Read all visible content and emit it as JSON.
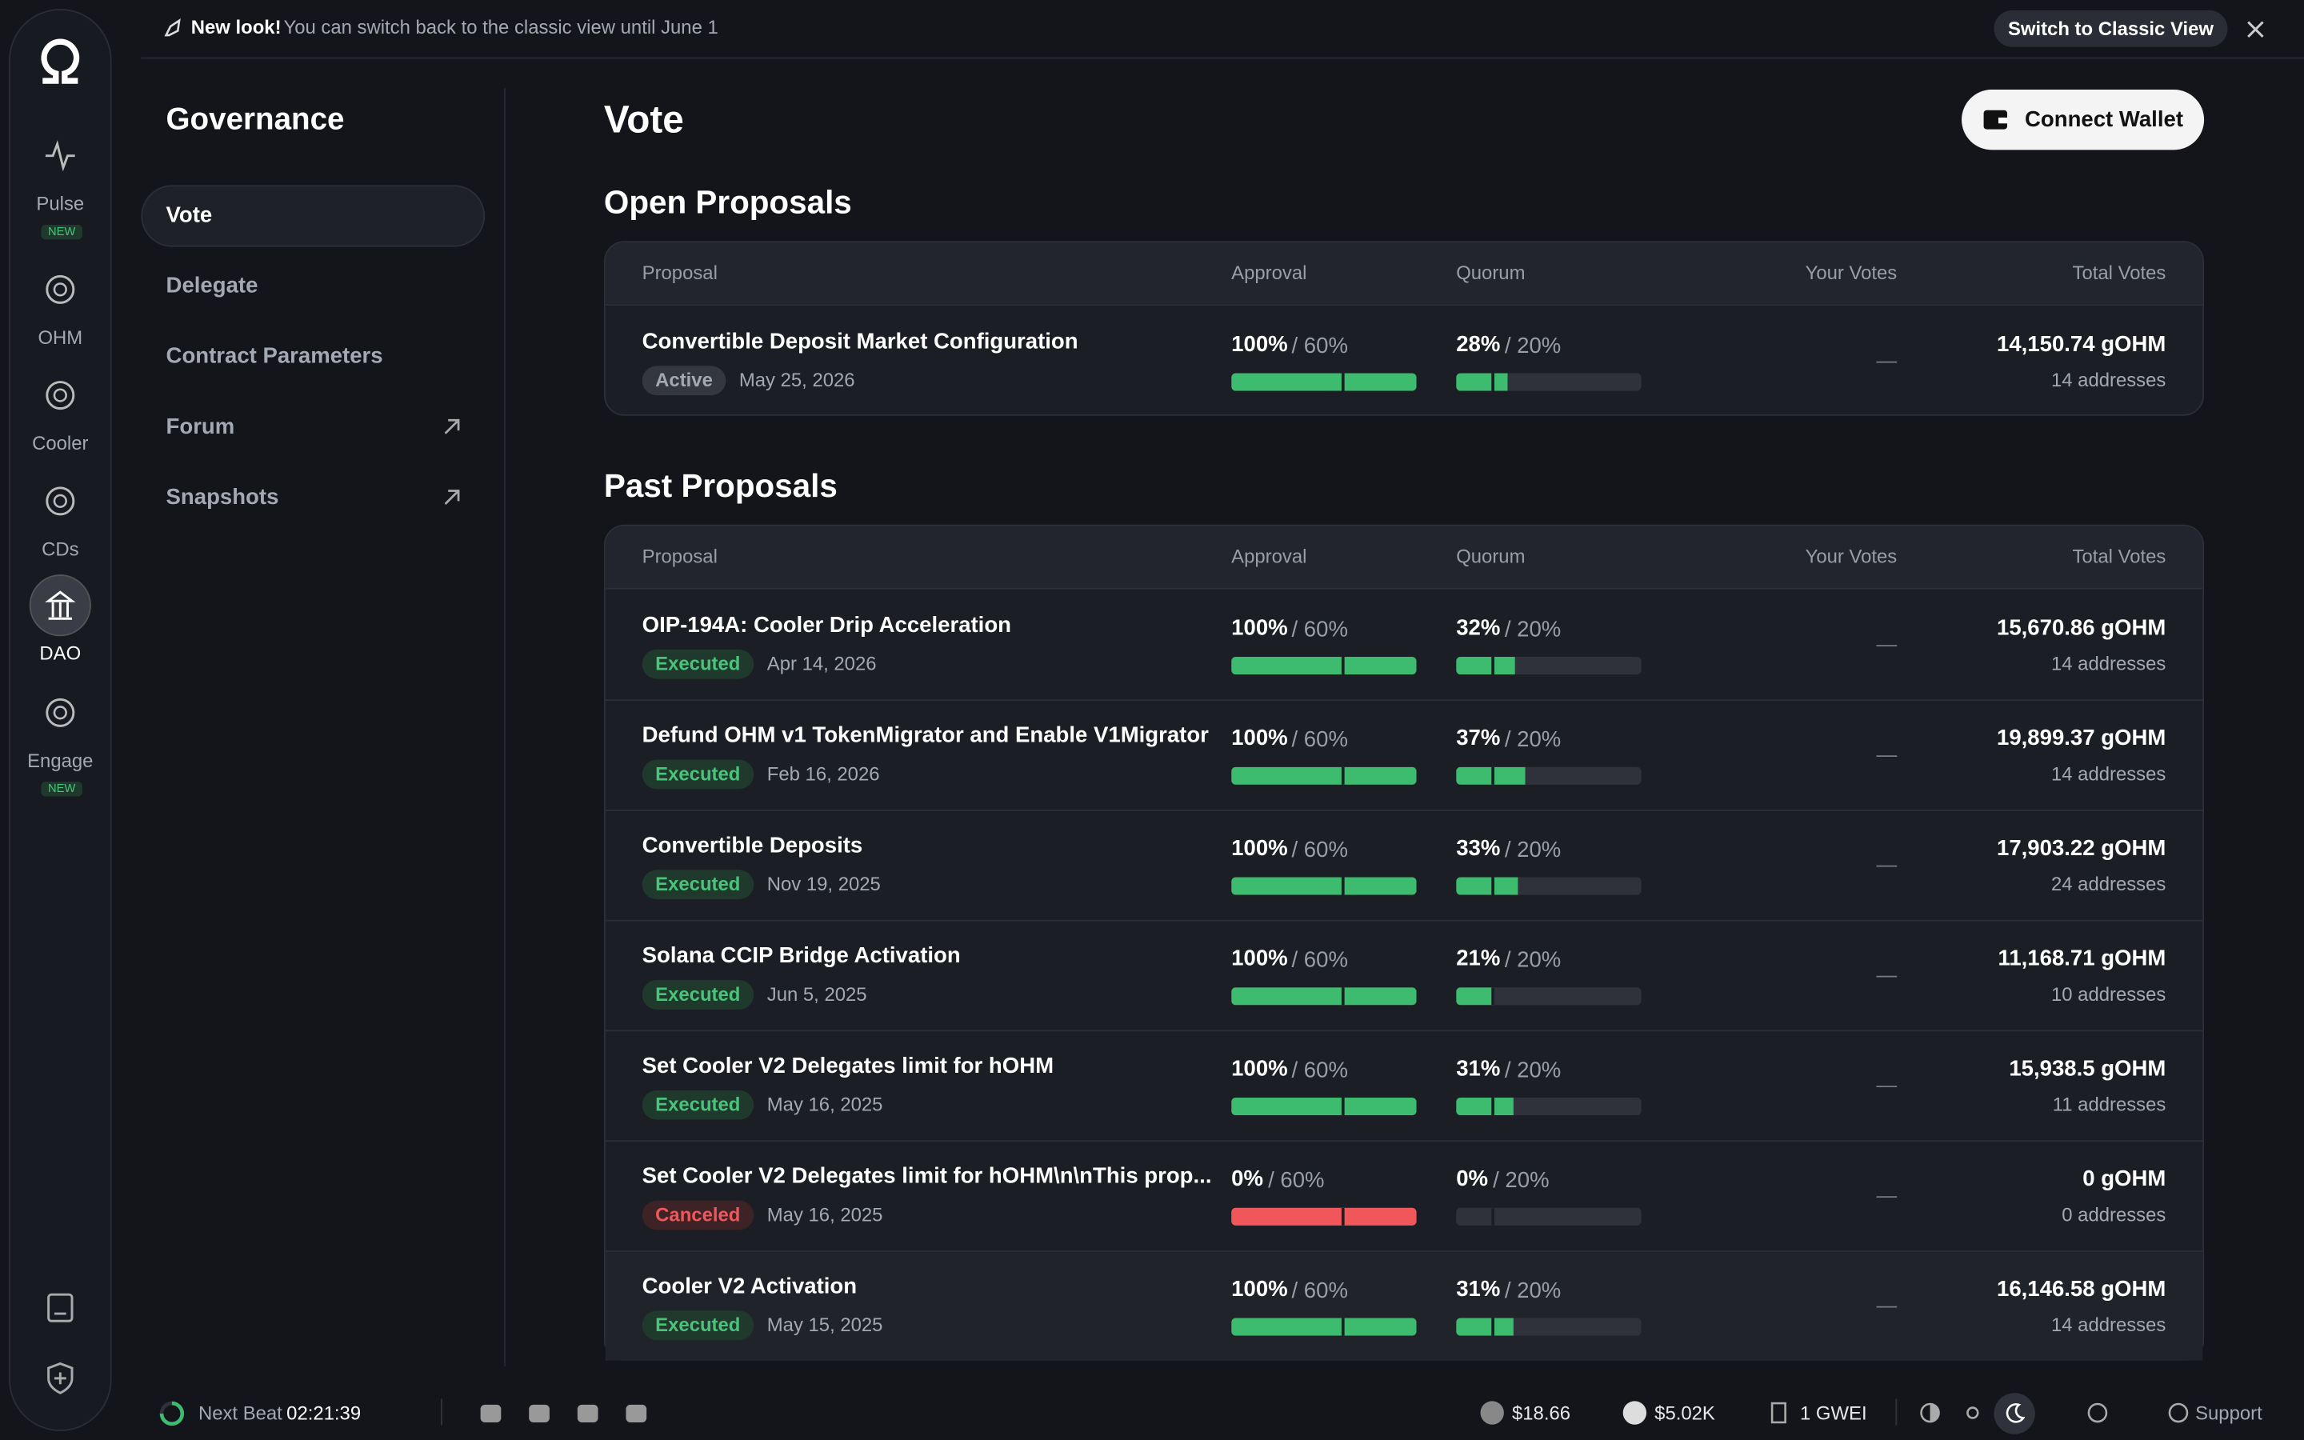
{
  "banner": {
    "highlight": "New look!",
    "message": "You can switch back to the classic view until June 1",
    "button": "Switch to Classic View"
  },
  "nav": [
    {
      "label": "Pulse",
      "badge": "NEW"
    },
    {
      "label": "OHM"
    },
    {
      "label": "Cooler"
    },
    {
      "label": "CDs"
    },
    {
      "label": "DAO"
    },
    {
      "label": "Engage",
      "badge": "NEW"
    }
  ],
  "submenu": {
    "title": "Governance",
    "items": [
      "Vote",
      "Delegate",
      "Contract Parameters",
      "Forum",
      "Snapshots"
    ]
  },
  "page": {
    "title": "Vote",
    "connect_button": "Connect Wallet"
  },
  "open_proposals": {
    "title": "Open Proposals",
    "columns": [
      "Proposal",
      "Approval",
      "Quorum",
      "Your Votes",
      "Total Votes"
    ],
    "rows": [
      {
        "name": "Convertible Deposit Market Configuration",
        "status": "Active",
        "date": "May 25, 2026",
        "approval": {
          "value": 100,
          "label": "100%"
        },
        "approval_threshold": {
          "value": 60,
          "label": "/ 60%"
        },
        "quorum": {
          "value": 28,
          "label": "28%"
        },
        "quorum_threshold": {
          "value": 20,
          "label": "/ 20%"
        },
        "your_votes": "—",
        "total_votes": "14,150.74 gOHM",
        "addresses": "14 addresses"
      }
    ]
  },
  "past_proposals": {
    "title": "Past Proposals",
    "columns": [
      "Proposal",
      "Approval",
      "Quorum",
      "Your Votes",
      "Total Votes"
    ],
    "rows": [
      {
        "name": "OIP-194A: Cooler Drip Acceleration",
        "status": "Executed",
        "date": "Apr 14, 2026",
        "approval": {
          "value": 100,
          "label": "100%"
        },
        "approval_threshold": {
          "value": 60,
          "label": "/ 60%"
        },
        "quorum": {
          "value": 32,
          "label": "32%"
        },
        "quorum_threshold": {
          "value": 20,
          "label": "/ 20%"
        },
        "your_votes": "—",
        "total_votes": "15,670.86 gOHM",
        "addresses": "14 addresses"
      },
      {
        "name": "Defund OHM v1 TokenMigrator and Enable V1Migrator",
        "status": "Executed",
        "date": "Feb 16, 2026",
        "approval": {
          "value": 100,
          "label": "100%"
        },
        "approval_threshold": {
          "value": 60,
          "label": "/ 60%"
        },
        "quorum": {
          "value": 37,
          "label": "37%"
        },
        "quorum_threshold": {
          "value": 20,
          "label": "/ 20%"
        },
        "your_votes": "—",
        "total_votes": "19,899.37 gOHM",
        "addresses": "14 addresses"
      },
      {
        "name": "Convertible Deposits",
        "status": "Executed",
        "date": "Nov 19, 2025",
        "approval": {
          "value": 100,
          "label": "100%"
        },
        "approval_threshold": {
          "value": 60,
          "label": "/ 60%"
        },
        "quorum": {
          "value": 33,
          "label": "33%"
        },
        "quorum_threshold": {
          "value": 20,
          "label": "/ 20%"
        },
        "your_votes": "—",
        "total_votes": "17,903.22 gOHM",
        "addresses": "24 addresses"
      },
      {
        "name": "Solana CCIP Bridge Activation",
        "status": "Executed",
        "date": "Jun 5, 2025",
        "approval": {
          "value": 100,
          "label": "100%"
        },
        "approval_threshold": {
          "value": 60,
          "label": "/ 60%"
        },
        "quorum": {
          "value": 21,
          "label": "21%"
        },
        "quorum_threshold": {
          "value": 20,
          "label": "/ 20%"
        },
        "your_votes": "—",
        "total_votes": "11,168.71 gOHM",
        "addresses": "10 addresses"
      },
      {
        "name": "Set Cooler V2 Delegates limit for hOHM",
        "status": "Executed",
        "date": "May 16, 2025",
        "approval": {
          "value": 100,
          "label": "100%"
        },
        "approval_threshold": {
          "value": 60,
          "label": "/ 60%"
        },
        "quorum": {
          "value": 31,
          "label": "31%"
        },
        "quorum_threshold": {
          "value": 20,
          "label": "/ 20%"
        },
        "your_votes": "—",
        "total_votes": "15,938.5 gOHM",
        "addresses": "11 addresses"
      },
      {
        "name": "Set Cooler V2 Delegates limit for hOHM\\n\\nThis prop...",
        "status": "Canceled",
        "date": "May 16, 2025",
        "approval": {
          "value": 0,
          "label": "0%"
        },
        "approval_threshold": {
          "value": 60,
          "label": "/ 60%"
        },
        "quorum": {
          "value": 0,
          "label": "0%"
        },
        "quorum_threshold": {
          "value": 20,
          "label": "/ 20%"
        },
        "your_votes": "—",
        "total_votes": "0 gOHM",
        "addresses": "0 addresses"
      },
      {
        "name": "Cooler V2 Activation",
        "status": "Executed",
        "date": "May 15, 2025",
        "approval": {
          "value": 100,
          "label": "100%"
        },
        "approval_threshold": {
          "value": 60,
          "label": "/ 60%"
        },
        "quorum": {
          "value": 31,
          "label": "31%"
        },
        "quorum_threshold": {
          "value": 20,
          "label": "/ 20%"
        },
        "your_votes": "—",
        "total_votes": "16,146.58 gOHM",
        "addresses": "14 addresses"
      }
    ]
  },
  "footer": {
    "next_beat_label": "Next Beat",
    "next_beat": "02:21:39",
    "ohm_price": "$18.66",
    "gohm_price": "$5.02K",
    "gas": "1 GWEI",
    "support": "Support"
  }
}
